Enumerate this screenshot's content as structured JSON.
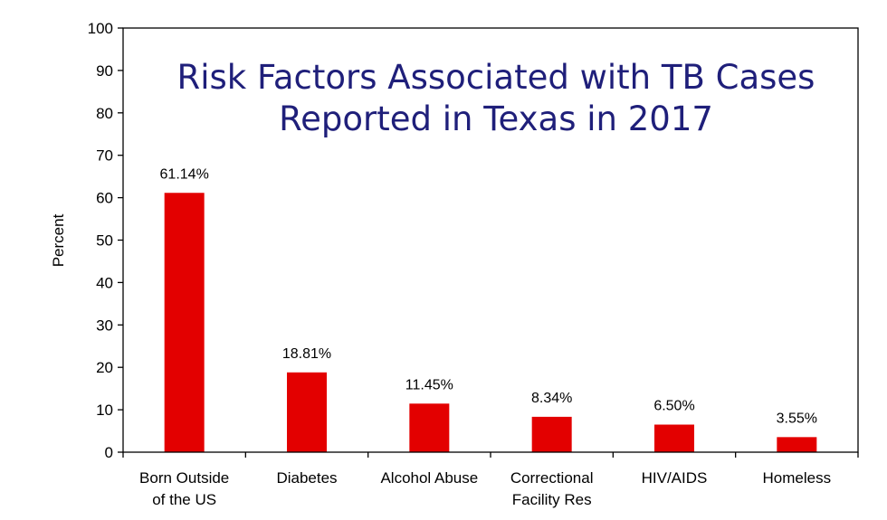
{
  "chart_data": {
    "type": "bar",
    "title_lines": [
      "Risk Factors Associated with TB Cases",
      "Reported in Texas in 2017"
    ],
    "xlabel": "",
    "ylabel": "Percent",
    "ylim": [
      0,
      100
    ],
    "yticks": [
      0,
      10,
      20,
      30,
      40,
      50,
      60,
      70,
      80,
      90,
      100
    ],
    "categories": [
      [
        "Born Outside",
        "of the US"
      ],
      [
        "Diabetes"
      ],
      [
        "Alcohol Abuse"
      ],
      [
        "Correctional",
        "Facility Res"
      ],
      [
        "HIV/AIDS"
      ],
      [
        "Homeless"
      ]
    ],
    "values": [
      61.14,
      18.81,
      11.45,
      8.34,
      6.5,
      3.55
    ],
    "data_labels": [
      "61.14%",
      "18.81%",
      "11.45%",
      "8.34%",
      "6.50%",
      "3.55%"
    ],
    "bar_color": "#e30000",
    "title_color": "#1f1f7a",
    "grid": false,
    "legend": "none"
  }
}
